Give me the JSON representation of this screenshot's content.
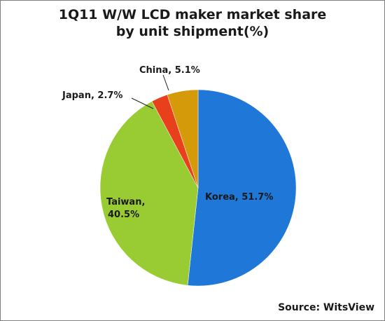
{
  "chart_data": {
    "type": "pie",
    "title_line1": "1Q11 W/W LCD maker market share",
    "title_line2": "by unit shipment(%)",
    "slices": [
      {
        "label": "Korea",
        "value": 51.7,
        "text": "Korea, 51.7%",
        "color": "#1f77d8"
      },
      {
        "label": "Taiwan",
        "value": 40.5,
        "text_line1": "Taiwan,",
        "text_line2": "40.5%",
        "color": "#99cc33"
      },
      {
        "label": "Japan",
        "value": 2.7,
        "text": "Japan, 2.7%",
        "color": "#e8401c"
      },
      {
        "label": "China",
        "value": 5.1,
        "text": "China, 5.1%",
        "color": "#d49a0a"
      }
    ],
    "source": "Source: WitsView"
  }
}
